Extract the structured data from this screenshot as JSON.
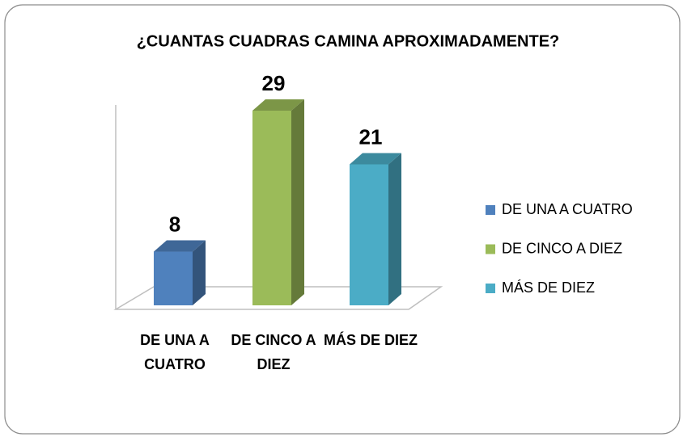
{
  "chart_data": {
    "type": "bar3d",
    "title": "¿CUANTAS CUADRAS CAMINA APROXIMADAMENTE?",
    "categories": [
      "DE UNA A CUATRO",
      "DE CINCO A DIEZ",
      "MÁS DE DIEZ"
    ],
    "values": [
      8,
      29,
      21
    ],
    "colors": [
      "#4f81bd",
      "#9bbb59",
      "#4bacc6"
    ],
    "legend": "right"
  }
}
